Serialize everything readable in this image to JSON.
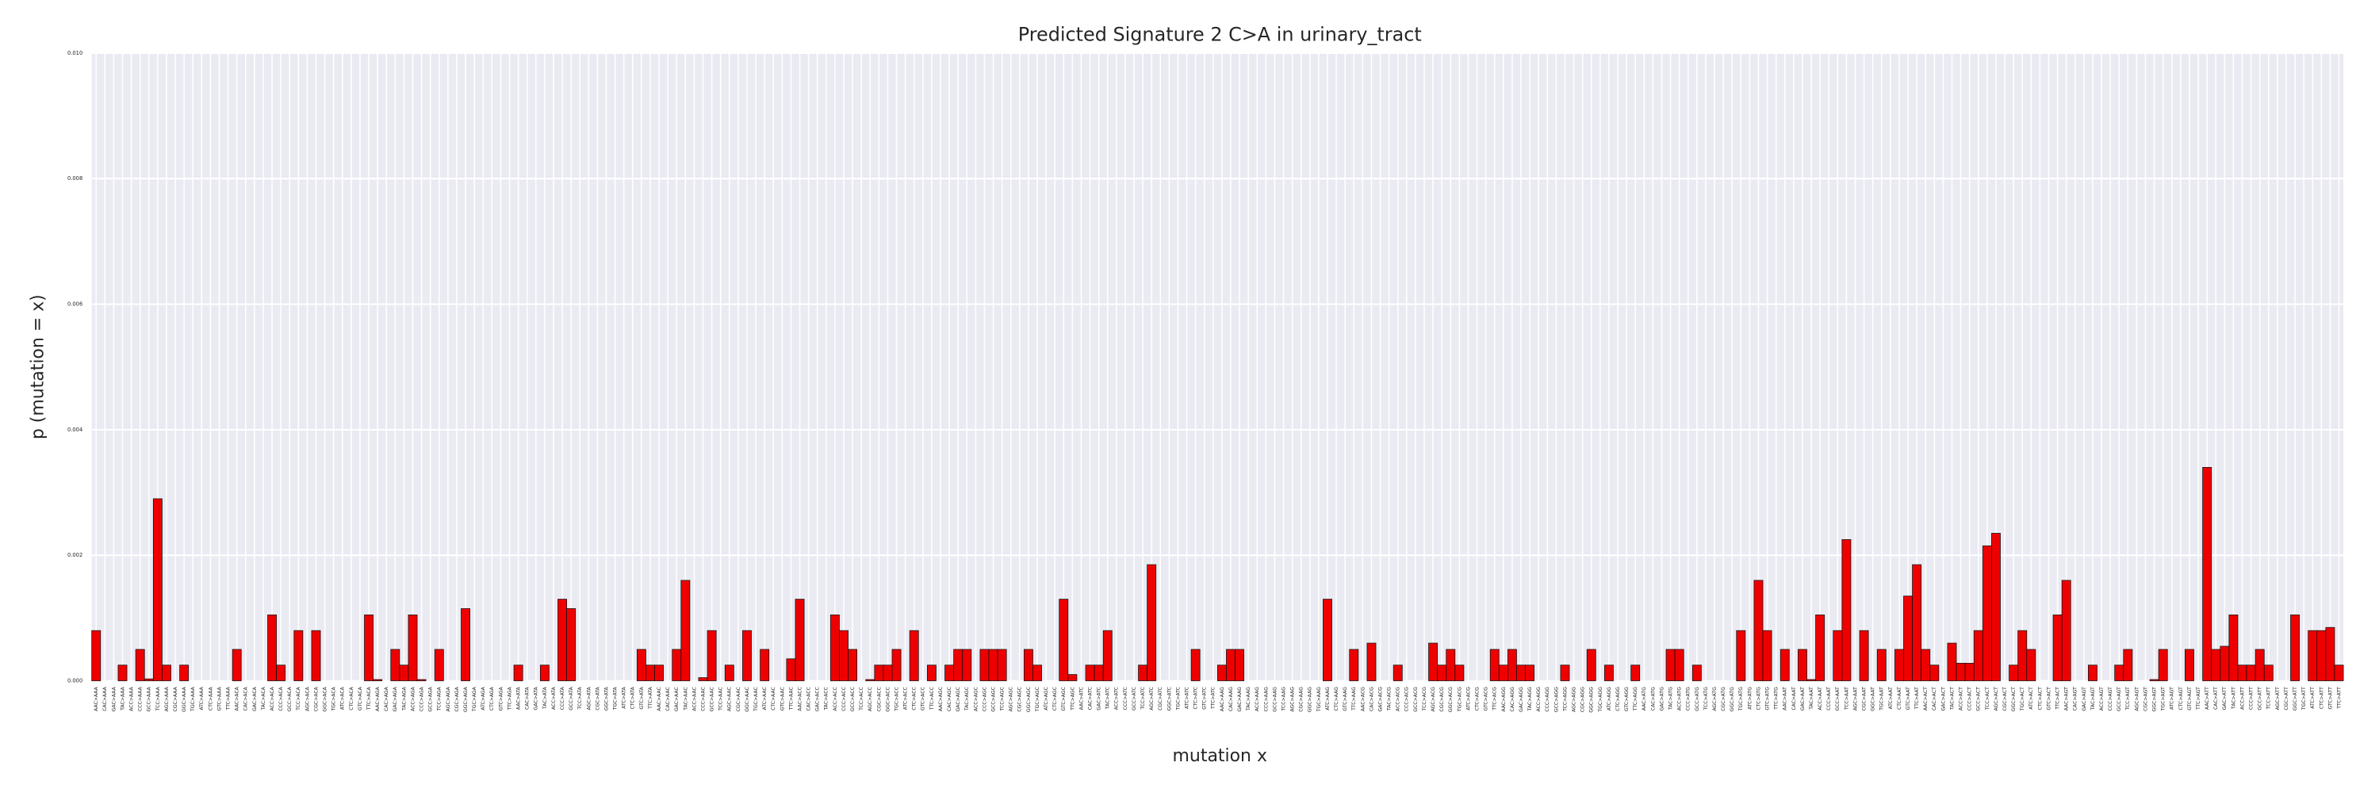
{
  "chart_data": {
    "type": "bar",
    "title": "Predicted Signature 2 C>A in urinary_tract",
    "x_label": "mutation x",
    "y_label": "p (mutation = x)",
    "color": "#ee0000",
    "edgecolor": "#111111",
    "grid": true,
    "ylim": [
      0,
      0.01
    ],
    "yticks": [
      {
        "value": 0,
        "label": "0.000"
      },
      {
        "value": 0.002,
        "label": "0.002"
      },
      {
        "value": 0.004,
        "label": "0.004"
      },
      {
        "value": 0.006,
        "label": "0.006"
      },
      {
        "value": 0.008,
        "label": "0.008"
      },
      {
        "value": 0.01,
        "label": "0.010"
      }
    ],
    "categories": [
      "AAC>AAA",
      "CAC>AAA",
      "GAC>AAA",
      "TAC>AAA",
      "ACC>AAA",
      "CCC>AAA",
      "GCC>AAA",
      "TCC>AAA",
      "AGC>AAA",
      "CGC>AAA",
      "GGC>AAA",
      "TGC>AAA",
      "ATC>AAA",
      "CTC>AAA",
      "GTC>AAA",
      "TTC>AAA",
      "AAC>ACA",
      "CAC>ACA",
      "GAC>ACA",
      "TAC>ACA",
      "ACC>ACA",
      "CCC>ACA",
      "GCC>ACA",
      "TCC>ACA",
      "AGC>ACA",
      "CGC>ACA",
      "GGC>ACA",
      "TGC>ACA",
      "ATC>ACA",
      "CTC>ACA",
      "GTC>ACA",
      "TTC>ACA",
      "AAC>AGA",
      "CAC>AGA",
      "GAC>AGA",
      "TAC>AGA",
      "ACC>AGA",
      "CCC>AGA",
      "GCC>AGA",
      "TCC>AGA",
      "AGC>AGA",
      "CGC>AGA",
      "GGC>AGA",
      "TGC>AGA",
      "ATC>AGA",
      "CTC>AGA",
      "GTC>AGA",
      "TTC>AGA",
      "AAC>ATA",
      "CAC>ATA",
      "GAC>ATA",
      "TAC>ATA",
      "ACC>ATA",
      "CCC>ATA",
      "GCC>ATA",
      "TCC>ATA",
      "AGC>ATA",
      "CGC>ATA",
      "GGC>ATA",
      "TGC>ATA",
      "ATC>ATA",
      "CTC>ATA",
      "GTC>ATA",
      "TTC>ATA",
      "AAC>AAC",
      "CAC>AAC",
      "GAC>AAC",
      "TAC>AAC",
      "ACC>AAC",
      "CCC>AAC",
      "GCC>AAC",
      "TCC>AAC",
      "AGC>AAC",
      "CGC>AAC",
      "GGC>AAC",
      "TGC>AAC",
      "ATC>AAC",
      "CTC>AAC",
      "GTC>AAC",
      "TTC>AAC",
      "AAC>ACC",
      "CAC>ACC",
      "GAC>ACC",
      "TAC>ACC",
      "ACC>ACC",
      "CCC>ACC",
      "GCC>ACC",
      "TCC>ACC",
      "AGC>ACC",
      "CGC>ACC",
      "GGC>ACC",
      "TGC>ACC",
      "ATC>ACC",
      "CTC>ACC",
      "GTC>ACC",
      "TTC>ACC",
      "AAC>AGC",
      "CAC>AGC",
      "GAC>AGC",
      "TAC>AGC",
      "ACC>AGC",
      "CCC>AGC",
      "GCC>AGC",
      "TCC>AGC",
      "AGC>AGC",
      "CGC>AGC",
      "GGC>AGC",
      "TGC>AGC",
      "ATC>AGC",
      "CTC>AGC",
      "GTC>AGC",
      "TTC>AGC",
      "AAC>ATC",
      "CAC>ATC",
      "GAC>ATC",
      "TAC>ATC",
      "ACC>ATC",
      "CCC>ATC",
      "GCC>ATC",
      "TCC>ATC",
      "AGC>ATC",
      "CGC>ATC",
      "GGC>ATC",
      "TGC>ATC",
      "ATC>ATC",
      "CTC>ATC",
      "GTC>ATC",
      "TTC>ATC",
      "AAC>AAG",
      "CAC>AAG",
      "GAC>AAG",
      "TAC>AAG",
      "ACC>AAG",
      "CCC>AAG",
      "GCC>AAG",
      "TCC>AAG",
      "AGC>AAG",
      "CGC>AAG",
      "GGC>AAG",
      "TGC>AAG",
      "ATC>AAG",
      "CTC>AAG",
      "GTC>AAG",
      "TTC>AAG",
      "AAC>ACG",
      "CAC>ACG",
      "GAC>ACG",
      "TAC>ACG",
      "ACC>ACG",
      "CCC>ACG",
      "GCC>ACG",
      "TCC>ACG",
      "AGC>ACG",
      "CGC>ACG",
      "GGC>ACG",
      "TGC>ACG",
      "ATC>ACG",
      "CTC>ACG",
      "GTC>ACG",
      "TTC>ACG",
      "AAC>AGG",
      "CAC>AGG",
      "GAC>AGG",
      "TAC>AGG",
      "ACC>AGG",
      "CCC>AGG",
      "GCC>AGG",
      "TCC>AGG",
      "AGC>AGG",
      "CGC>AGG",
      "GGC>AGG",
      "TGC>AGG",
      "ATC>AGG",
      "CTC>AGG",
      "GTC>AGG",
      "TTC>AGG",
      "AAC>ATG",
      "CAC>ATG",
      "GAC>ATG",
      "TAC>ATG",
      "ACC>ATG",
      "CCC>ATG",
      "GCC>ATG",
      "TCC>ATG",
      "AGC>ATG",
      "CGC>ATG",
      "GGC>ATG",
      "TGC>ATG",
      "ATC>ATG",
      "CTC>ATG",
      "GTC>ATG",
      "TTC>ATG",
      "AAC>AAT",
      "CAC>AAT",
      "GAC>AAT",
      "TAC>AAT",
      "ACC>AAT",
      "CCC>AAT",
      "GCC>AAT",
      "TCC>AAT",
      "AGC>AAT",
      "CGC>AAT",
      "GGC>AAT",
      "TGC>AAT",
      "ATC>AAT",
      "CTC>AAT",
      "GTC>AAT",
      "TTC>AAT",
      "AAC>ACT",
      "CAC>ACT",
      "GAC>ACT",
      "TAC>ACT",
      "ACC>ACT",
      "CCC>ACT",
      "GCC>ACT",
      "TCC>ACT",
      "AGC>ACT",
      "CGC>ACT",
      "GGC>ACT",
      "TGC>ACT",
      "ATC>ACT",
      "CTC>ACT",
      "GTC>ACT",
      "TTC>ACT",
      "AAC>AGT",
      "CAC>AGT",
      "GAC>AGT",
      "TAC>AGT",
      "ACC>AGT",
      "CCC>AGT",
      "GCC>AGT",
      "TCC>AGT",
      "AGC>AGT",
      "CGC>AGT",
      "GGC>AGT",
      "TGC>AGT",
      "ATC>AGT",
      "CTC>AGT",
      "GTC>AGT",
      "TTC>AGT",
      "AAC>ATT",
      "CAC>ATT",
      "GAC>ATT",
      "TAC>ATT",
      "ACC>ATT",
      "CCC>ATT",
      "GCC>ATT",
      "TCC>ATT",
      "AGC>ATT",
      "CGC>ATT",
      "GGC>ATT",
      "TGC>ATT",
      "ATC>ATT",
      "CTC>ATT",
      "GTC>ATT",
      "TTC>ATT"
    ],
    "values": [
      0.0008,
      0,
      0,
      0.00025,
      0,
      0.0005,
      3e-05,
      0.0029,
      0.00025,
      0,
      0.00025,
      0,
      0,
      0,
      0,
      0,
      0.0005,
      0,
      0,
      0,
      0.00105,
      0.00025,
      0,
      0.0008,
      0,
      0.0008,
      0,
      0,
      0,
      0,
      0,
      0.00105,
      2e-05,
      0,
      0.0005,
      0.00025,
      0.00105,
      2e-05,
      0,
      0.0005,
      0,
      0,
      0.00115,
      0,
      0,
      0,
      0,
      0,
      0.00025,
      0,
      0,
      0.00025,
      0,
      0.0013,
      0.00115,
      0,
      0,
      0,
      0,
      0,
      0,
      0,
      0.0005,
      0.00025,
      0.00025,
      0,
      0.0005,
      0.0016,
      0,
      5e-05,
      0.0008,
      0,
      0.00025,
      0,
      0.0008,
      0,
      0.0005,
      0,
      0,
      0.00035,
      0.0013,
      0,
      0,
      0,
      0.00105,
      0.0008,
      0.0005,
      0,
      2e-05,
      0.00025,
      0.00025,
      0.0005,
      0,
      0.0008,
      0,
      0.00025,
      0,
      0.00025,
      0.0005,
      0.0005,
      0,
      0.0005,
      0.0005,
      0.0005,
      0,
      0,
      0.0005,
      0.00025,
      0,
      0,
      0.0013,
      0.0001,
      0,
      0.00025,
      0.00025,
      0.0008,
      0,
      0,
      0,
      0.00025,
      0.00185,
      0,
      0,
      0,
      0,
      0.0005,
      0,
      0,
      0.00025,
      0.0005,
      0.0005,
      0,
      0,
      0,
      0,
      0,
      0,
      0,
      0,
      0,
      0.0013,
      0,
      0,
      0.0005,
      0,
      0.0006,
      0,
      0,
      0.00025,
      0,
      0,
      0,
      0.0006,
      0.00025,
      0.0005,
      0.00025,
      0,
      0,
      0,
      0.0005,
      0.00025,
      0.0005,
      0.00025,
      0.00025,
      0,
      0,
      0,
      0.00025,
      0,
      0,
      0.0005,
      0,
      0.00025,
      0,
      0,
      0.00025,
      0,
      0,
      0,
      0.0005,
      0.0005,
      0,
      0.00025,
      0,
      0,
      0,
      0,
      0.0008,
      0,
      0.0016,
      0.0008,
      0,
      0.0005,
      0,
      0.0005,
      2e-05,
      0.00105,
      0,
      0.0008,
      0.00225,
      0,
      0.0008,
      0,
      0.0005,
      0,
      0.0005,
      0.00135,
      0.00185,
      0.0005,
      0.00025,
      0,
      0.0006,
      0.00028,
      0.00028,
      0.0008,
      0.00215,
      0.00235,
      0,
      0.00025,
      0.0008,
      0.0005,
      0,
      0,
      0.00105,
      0.0016,
      0,
      0,
      0.00025,
      0,
      0,
      0.00025,
      0.0005,
      0,
      0,
      2e-05,
      0.0005,
      0,
      0,
      0.0005,
      0,
      0.0034,
      0.0005,
      0.00055,
      0.00105,
      0.00025,
      0.00025,
      0.0005,
      0.00025,
      0,
      0,
      0.00105,
      0,
      0.0008,
      0.0008,
      0.00085,
      0.00025
    ]
  }
}
